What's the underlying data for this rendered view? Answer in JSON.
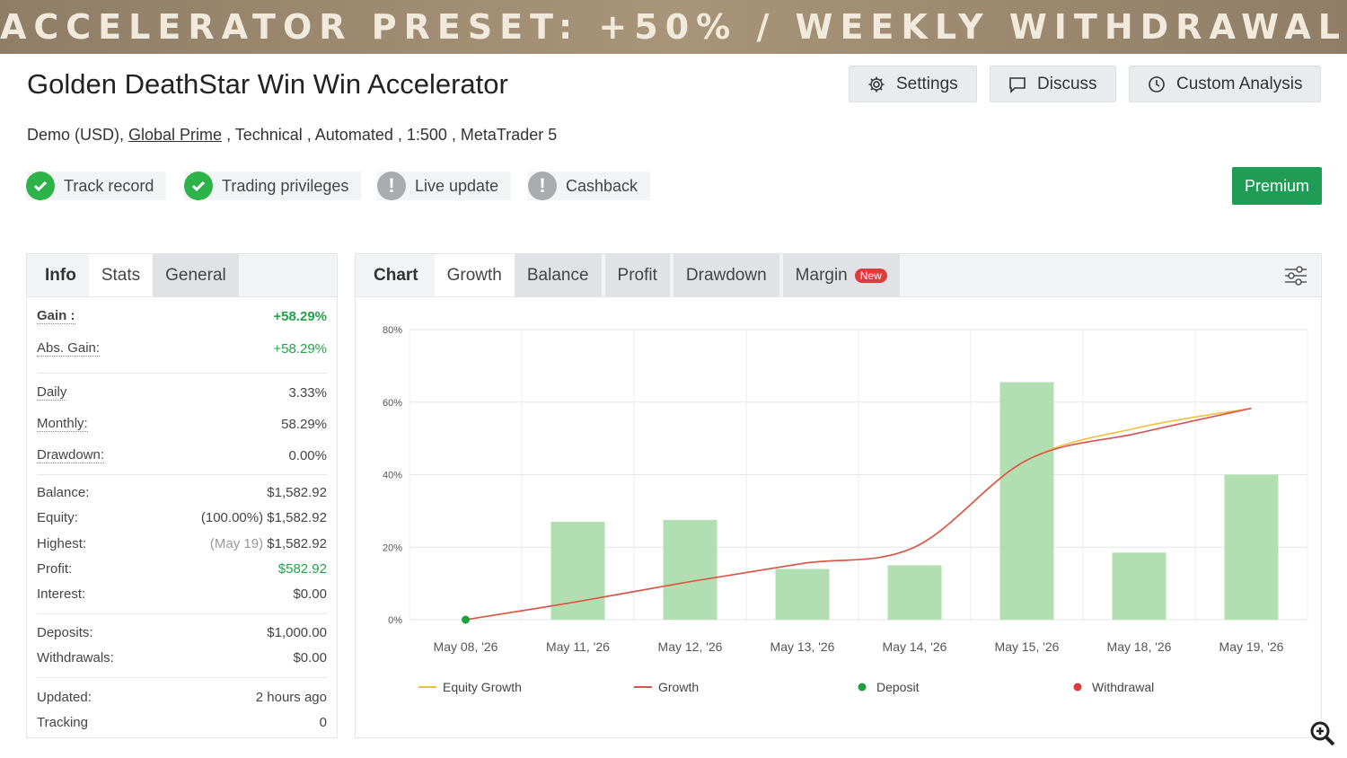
{
  "banner": {
    "text": "ACCELERATOR PRESET: +50% / WEEKLY WITHDRAWAL"
  },
  "header": {
    "title": "Golden DeathStar Win Win Accelerator",
    "buttons": {
      "settings": "Settings",
      "discuss": "Discuss",
      "custom_analysis": "Custom Analysis"
    },
    "sub": {
      "prefix": "Demo (USD), ",
      "broker": "Global Prime",
      "suffix": " , Technical , Automated , 1:500 , MetaTrader 5"
    }
  },
  "badges": {
    "track_record": "Track record",
    "trading_privileges": "Trading privileges",
    "live_update": "Live update",
    "cashback": "Cashback",
    "premium": "Premium"
  },
  "left_tabs": {
    "info": "Info",
    "stats": "Stats",
    "general": "General"
  },
  "stats": {
    "gain_label": "Gain :",
    "gain_value": "+58.29%",
    "abs_gain_label": "Abs. Gain:",
    "abs_gain_value": "+58.29%",
    "daily_label": "Daily",
    "daily_value": "3.33%",
    "monthly_label": "Monthly:",
    "monthly_value": "58.29%",
    "drawdown_label": "Drawdown:",
    "drawdown_value": "0.00%",
    "balance_label": "Balance:",
    "balance_value": "$1,582.92",
    "equity_label": "Equity:",
    "equity_pct": "(100.00%)",
    "equity_value": "$1,582.92",
    "highest_label": "Highest:",
    "highest_date": "(May 19)",
    "highest_value": "$1,582.92",
    "profit_label": "Profit:",
    "profit_value": "$582.92",
    "interest_label": "Interest:",
    "interest_value": "$0.00",
    "deposits_label": "Deposits:",
    "deposits_value": "$1,000.00",
    "withdrawals_label": "Withdrawals:",
    "withdrawals_value": "$0.00",
    "updated_label": "Updated:",
    "updated_value": "2 hours ago",
    "tracking_label": "Tracking",
    "tracking_value": "0"
  },
  "chart_tabs": {
    "chart": "Chart",
    "growth": "Growth",
    "balance": "Balance",
    "profit": "Profit",
    "drawdown": "Drawdown",
    "margin": "Margin",
    "new": "New"
  },
  "colors": {
    "bar": "#b2dfb2",
    "growth": "#d9534f",
    "equity": "#f0c040",
    "deposit": "#1e9e3e",
    "withdrawal": "#e03b3b",
    "accent": "#1f9d55"
  },
  "chart_data": {
    "type": "bar",
    "categories": [
      "May 08, '26",
      "May 11, '26",
      "May 12, '26",
      "May 13, '26",
      "May 14, '26",
      "May 15, '26",
      "May 18, '26",
      "May 19, '26"
    ],
    "ylim": [
      0,
      80
    ],
    "yticks": [
      "0%",
      "20%",
      "40%",
      "60%",
      "80%"
    ],
    "ytick_values": [
      0,
      20,
      40,
      60,
      80
    ],
    "series": [
      {
        "name": "",
        "type": "bar",
        "values": [
          0,
          27,
          27.5,
          14,
          15,
          65.5,
          18.5,
          40
        ]
      },
      {
        "name": "Growth",
        "type": "line",
        "values": [
          0,
          5,
          10.5,
          15.5,
          20,
          44,
          51.5,
          58.3
        ]
      },
      {
        "name": "Equity Growth",
        "type": "line",
        "values": [
          0,
          5,
          10.5,
          15.5,
          20,
          44,
          53,
          58.3
        ]
      }
    ],
    "legend": [
      "Equity Growth",
      "Growth",
      "Deposit",
      "Withdrawal"
    ],
    "grid": true
  }
}
